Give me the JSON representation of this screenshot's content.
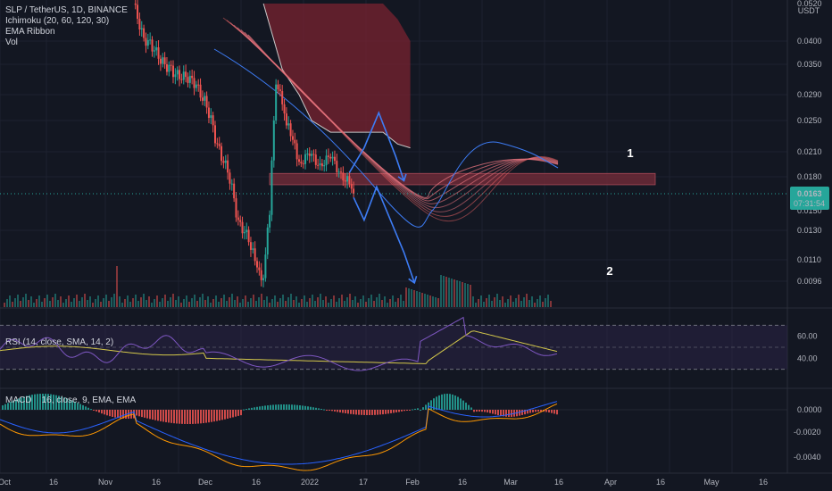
{
  "header": {
    "symbol_line": "SLP / TetherUS, 1D, BINANCE",
    "indicators": [
      "Ichimoku (20, 60, 120, 30)",
      "EMA Ribbon",
      "Vol"
    ],
    "currency": "USDT"
  },
  "price_axis": {
    "ticks": [
      "0.0520",
      "0.0400",
      "0.0350",
      "0.0290",
      "0.0250",
      "0.0210",
      "0.0180",
      "0.0130",
      "0.0110",
      "0.0096"
    ],
    "last_price": "0.0163",
    "countdown": "07:31:54",
    "partial_tick": "0.0150"
  },
  "rsi": {
    "legend": "RSI (14, close, SMA, 14, 2)",
    "ticks": [
      "60.00",
      "40.00"
    ]
  },
  "macd": {
    "legend_prefix": "MACD",
    "legend_suffix": "16, close, 9, EMA, EMA",
    "ticks": [
      "0.0000",
      "-0.0020",
      "-0.0040"
    ]
  },
  "time_axis": [
    "Oct",
    "16",
    "Nov",
    "16",
    "Dec",
    "16",
    "2022",
    "17",
    "Feb",
    "16",
    "Mar",
    "16",
    "Apr",
    "16",
    "May",
    "16"
  ],
  "annotations": [
    "1",
    "2"
  ],
  "colors": {
    "background": "#131722",
    "up": "#26a69a",
    "down": "#ef5350",
    "cloud": "#7a2330",
    "support_band": "#6d2a37",
    "projection": "#3d7cf5",
    "rsi_line": "#7e57c2",
    "rsi_sma": "#d4c84a",
    "macd_line": "#2962ff",
    "signal_line": "#ff9800",
    "last_price_badge": "#26a69a"
  },
  "chart_data": {
    "type": "candlestick",
    "symbol": "SLP/USDT",
    "interval": "1D",
    "exchange": "BINANCE",
    "last_price": 0.0163,
    "support_zone": [
      0.0172,
      0.0184
    ],
    "projection_1": {
      "dates": [
        "2022-03-14",
        "2022-03-21",
        "2022-03-28",
        "2022-04-05",
        "2022-04-09"
      ],
      "prices": [
        0.0185,
        0.0215,
        0.0262,
        0.0205,
        0.0176
      ]
    },
    "projection_2": {
      "dates": [
        "2022-03-16",
        "2022-03-21",
        "2022-03-27",
        "2022-04-09",
        "2022-04-14"
      ],
      "prices": [
        0.016,
        0.014,
        0.017,
        0.0115,
        0.0095
      ]
    },
    "price_series": {
      "dates": [
        "2021-12-01",
        "2021-12-06",
        "2021-12-11",
        "2021-12-16",
        "2021-12-21",
        "2021-12-26",
        "2021-12-31",
        "2022-01-05",
        "2022-01-10",
        "2022-01-15",
        "2022-01-20",
        "2022-01-25",
        "2022-01-29",
        "2022-02-01",
        "2022-02-04",
        "2022-02-07",
        "2022-02-10",
        "2022-02-14",
        "2022-02-18",
        "2022-02-23",
        "2022-02-28",
        "2022-03-05",
        "2022-03-10",
        "2022-03-15",
        "2022-03-16"
      ],
      "close": [
        0.052,
        0.041,
        0.038,
        0.035,
        0.033,
        0.0325,
        0.031,
        0.027,
        0.022,
        0.0185,
        0.014,
        0.0122,
        0.0105,
        0.0098,
        0.0145,
        0.031,
        0.0275,
        0.023,
        0.0198,
        0.0205,
        0.0196,
        0.0202,
        0.0185,
        0.0168,
        0.0163
      ]
    },
    "ichimoku_cloud_top": {
      "dates": [
        "2022-02-01",
        "2022-02-10",
        "2022-02-18",
        "2022-02-24",
        "2022-03-05",
        "2022-03-14",
        "2022-03-24",
        "2022-03-30",
        "2022-04-06",
        "2022-04-12"
      ],
      "values": [
        0.052,
        0.052,
        0.052,
        0.052,
        0.052,
        0.052,
        0.052,
        0.052,
        0.047,
        0.04
      ]
    },
    "ichimoku_cloud_bottom": {
      "dates": [
        "2022-02-01",
        "2022-02-10",
        "2022-02-18",
        "2022-02-24",
        "2022-03-05",
        "2022-03-14",
        "2022-03-24",
        "2022-03-30",
        "2022-04-06",
        "2022-04-12"
      ],
      "values": [
        0.052,
        0.034,
        0.029,
        0.025,
        0.0235,
        0.0235,
        0.0235,
        0.0235,
        0.022,
        0.0215
      ]
    },
    "rsi": {
      "current": 43,
      "sma": 45,
      "upper_band": 70,
      "lower_band": 30
    },
    "macd": {
      "current": -0.0007,
      "signal": -0.0005
    },
    "x_axis_ticks": [
      "Oct",
      "16",
      "Nov",
      "16",
      "Dec",
      "16",
      "2022",
      "17",
      "Feb",
      "16",
      "Mar",
      "16",
      "Apr",
      "16",
      "May",
      "16"
    ],
    "y_axis_ticks": [
      0.052,
      0.04,
      0.035,
      0.029,
      0.025,
      0.021,
      0.018,
      0.013,
      0.011,
      0.0096
    ]
  }
}
